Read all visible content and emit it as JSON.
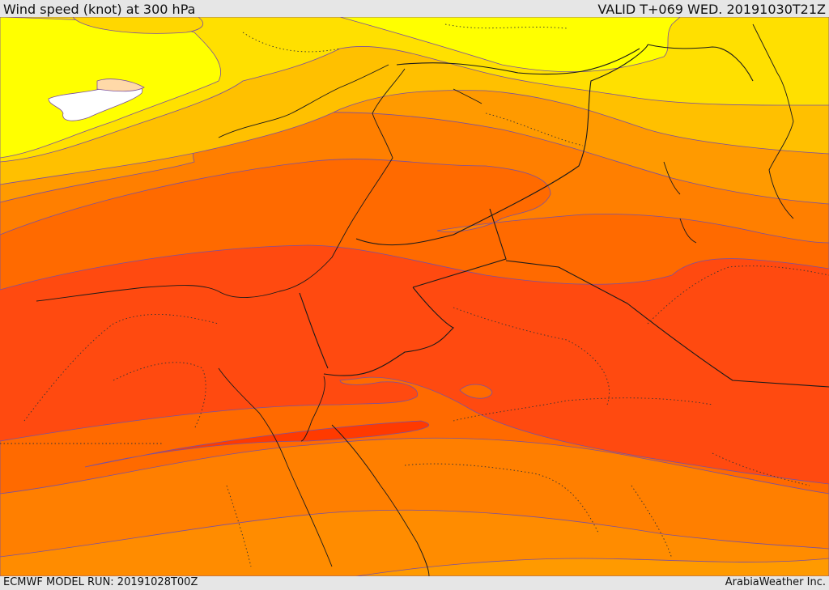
{
  "header": {
    "title": "Wind speed (knot) at 300 hPa",
    "valid_time": "VALID T+069 WED. 20191030T21Z"
  },
  "footer": {
    "model_run": "ECMWF MODEL RUN: 20191028T00Z",
    "credit": "ArabiaWeather Inc."
  },
  "map": {
    "field": "wind speed at 300 hPa",
    "color_bands": [
      "#ffffff",
      "#ffd9a8",
      "#ffff00",
      "#ffe000",
      "#ffc000",
      "#ff9a00",
      "#ff7f00",
      "#ff6000",
      "#ff4a10",
      "#ff3800"
    ]
  }
}
